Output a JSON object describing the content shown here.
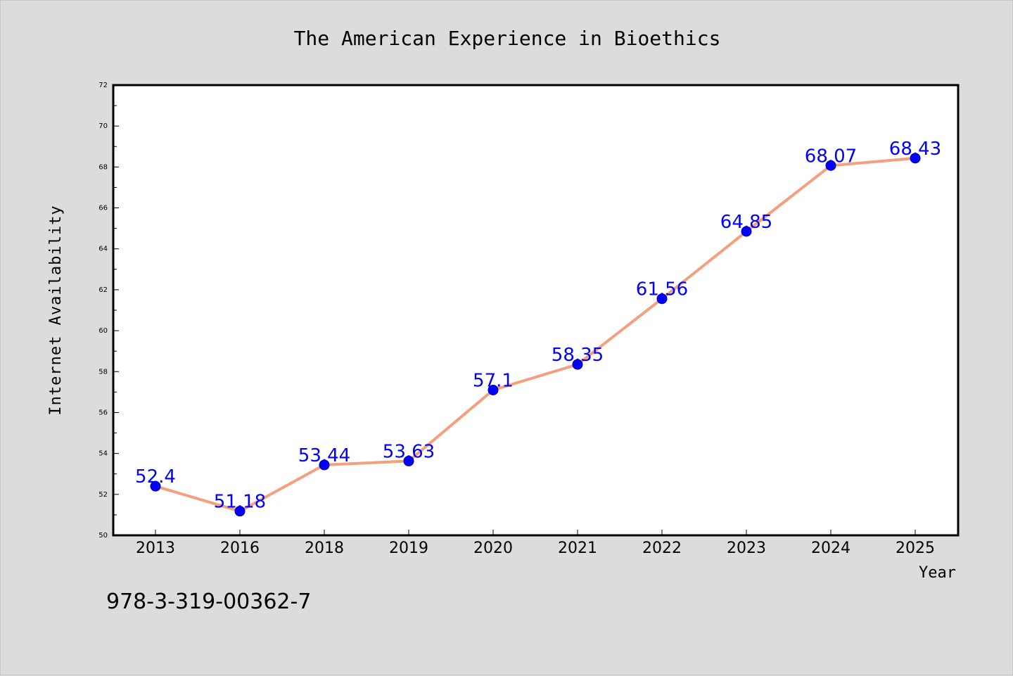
{
  "chart_data": {
    "type": "line",
    "title": "The American Experience in Bioethics",
    "xlabel": "Year",
    "ylabel": "Internet Availability",
    "categories": [
      "2013",
      "2016",
      "2018",
      "2019",
      "2020",
      "2021",
      "2022",
      "2023",
      "2024",
      "2025"
    ],
    "series": [
      {
        "values": [
          52.4,
          51.18,
          53.44,
          53.63,
          57.1,
          58.35,
          61.56,
          64.85,
          68.07,
          68.43
        ],
        "value_labels": [
          "52.4",
          "51.18",
          "53.44",
          "53.63",
          "57.1",
          "58.35",
          "61.56",
          "64.85",
          "68.07",
          "68.43"
        ],
        "line_color": "#f4a07e",
        "marker_color": "#0000ff",
        "label_color": "#0000ff"
      }
    ],
    "ylim": [
      50,
      72
    ],
    "yticks": [
      "50",
      "52",
      "54",
      "56",
      "58",
      "60",
      "62",
      "64",
      "66",
      "68",
      "70",
      "72"
    ],
    "grid": false
  },
  "footer_text": "978-3-319-00362-7"
}
